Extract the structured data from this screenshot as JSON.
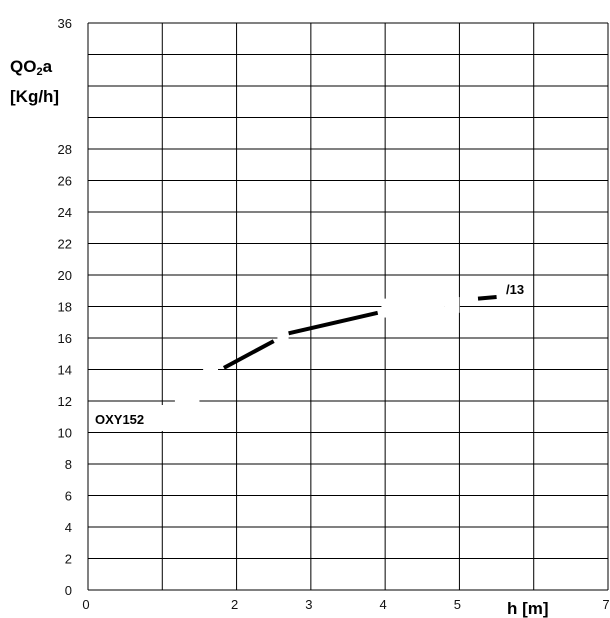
{
  "chart_data": {
    "type": "line",
    "title": "",
    "ylabel_main": "QO",
    "ylabel_sub": "2",
    "ylabel_suffix": "a",
    "ylabel_unit": "[Kg/h]",
    "xlabel": "h [m]",
    "xlim": [
      0,
      7
    ],
    "ylim": [
      0,
      36
    ],
    "x_tick_labels": [
      {
        "value": 0,
        "label": "0"
      },
      {
        "value": 2,
        "label": "2"
      },
      {
        "value": 3,
        "label": "3"
      },
      {
        "value": 4,
        "label": "4"
      },
      {
        "value": 5,
        "label": "5"
      },
      {
        "value": 7,
        "label": "7"
      }
    ],
    "y_tick_labels": [
      {
        "value": 0,
        "label": "0"
      },
      {
        "value": 2,
        "label": "2"
      },
      {
        "value": 4,
        "label": "4"
      },
      {
        "value": 6,
        "label": "6"
      },
      {
        "value": 8,
        "label": "8"
      },
      {
        "value": 10,
        "label": "10"
      },
      {
        "value": 12,
        "label": "12"
      },
      {
        "value": 14,
        "label": "14"
      },
      {
        "value": 16,
        "label": "16"
      },
      {
        "value": 18,
        "label": "18"
      },
      {
        "value": 20,
        "label": "20"
      },
      {
        "value": 22,
        "label": "22"
      },
      {
        "value": 24,
        "label": "24"
      },
      {
        "value": 26,
        "label": "26"
      },
      {
        "value": 28,
        "label": "28"
      },
      {
        "value": 36,
        "label": "36"
      }
    ],
    "grid": true,
    "series": [
      {
        "name": "OXY152",
        "label_2": "/13",
        "segments": [
          [
            [
              1.83,
              14.1
            ],
            [
              2.5,
              15.8
            ]
          ],
          [
            [
              2.7,
              16.3
            ],
            [
              3.9,
              17.6
            ]
          ],
          [
            [
              5.25,
              18.5
            ],
            [
              5.5,
              18.6
            ]
          ]
        ]
      }
    ]
  }
}
